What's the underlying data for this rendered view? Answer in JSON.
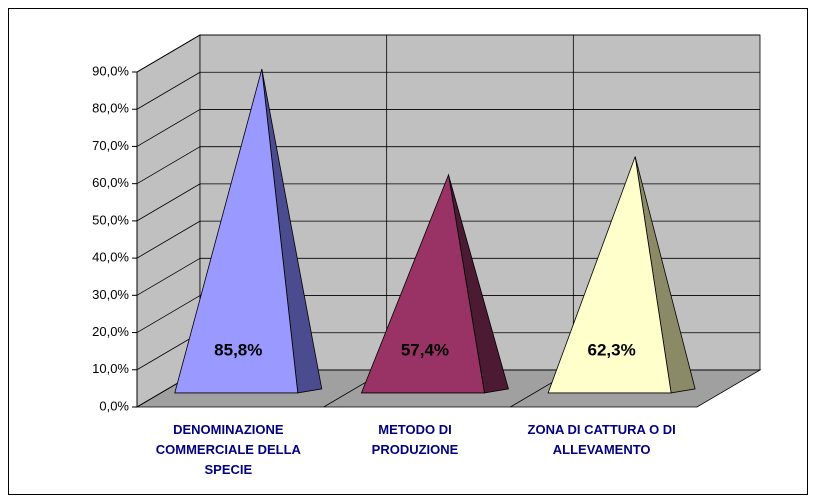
{
  "chart_data": {
    "type": "pyramid",
    "categories": [
      "DENOMINAZIONE COMMERCIALE DELLA SPECIE",
      "METODO DI PRODUZIONE",
      "ZONA DI CATTURA O DI ALLEVAMENTO"
    ],
    "values": [
      85.8,
      57.4,
      62.3
    ],
    "value_labels": [
      "85,8%",
      "57,4%",
      "62,3%"
    ],
    "colors": [
      "#9999ff",
      "#993366",
      "#ffffcc"
    ],
    "side_colors": [
      "#4b4b8f",
      "#4d1a33",
      "#8a8a66"
    ],
    "ylim": [
      0,
      90
    ],
    "yticks": [
      {
        "value": 0,
        "label": "0,0%"
      },
      {
        "value": 10,
        "label": "10,0%"
      },
      {
        "value": 20,
        "label": "20,0%"
      },
      {
        "value": 30,
        "label": "30,0%"
      },
      {
        "value": 40,
        "label": "40,0%"
      },
      {
        "value": 50,
        "label": "50,0%"
      },
      {
        "value": 60,
        "label": "60,0%"
      },
      {
        "value": 70,
        "label": "70,0%"
      },
      {
        "value": 80,
        "label": "80,0%"
      },
      {
        "value": 90,
        "label": "90,0%"
      }
    ],
    "grid": true
  }
}
